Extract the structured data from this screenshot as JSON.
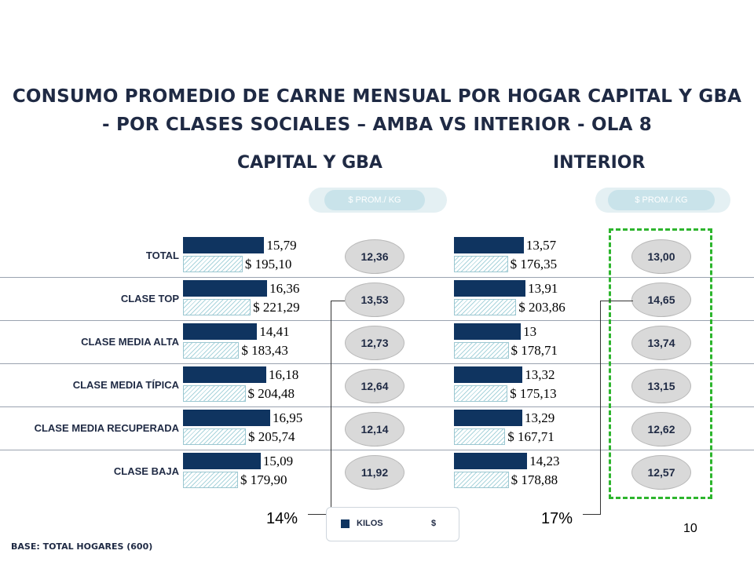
{
  "title_line1": "CONSUMO PROMEDIO DE CARNE MENSUAL POR HOGAR CAPITAL Y GBA",
  "title_line2": "- POR CLASES SOCIALES – AMBA VS INTERIOR - OLA 8",
  "pill_label": "$ PROM./ KG",
  "legend": {
    "kilos": "KILOS",
    "pesos": "$"
  },
  "colors": {
    "kilos": "#0f3460",
    "pesos_hatch": "#a9d4dc",
    "highlight_box": "#2db52d"
  },
  "page_number": "10",
  "base": "BASE: TOTAL HOGARES (600)",
  "chart_data": [
    {
      "type": "bar",
      "title": "CAPITAL Y GBA",
      "categories": [
        "TOTAL",
        "CLASE TOP",
        "CLASE MEDIA ALTA",
        "CLASE MEDIA TÍPICA",
        "CLASE MEDIA RECUPERADA",
        "CLASE BAJA"
      ],
      "series": [
        {
          "name": "KILOS",
          "values": [
            15.79,
            16.36,
            14.41,
            16.18,
            16.95,
            15.09
          ],
          "labels": [
            "15,79",
            "16,36",
            "14,41",
            "16,18",
            "16,95",
            "15,09"
          ]
        },
        {
          "name": "$",
          "values": [
            195.1,
            221.29,
            183.43,
            204.48,
            205.74,
            179.9
          ],
          "labels": [
            "$ 195,10",
            "$ 221,29",
            "$ 183,43",
            "$ 204,48",
            "$ 205,74",
            "$ 179,90"
          ]
        }
      ],
      "price_per_kg": [
        "12,36",
        "13,53",
        "12,73",
        "12,64",
        "12,14",
        "11,92"
      ],
      "bracket_label": "14%"
    },
    {
      "type": "bar",
      "title": "INTERIOR",
      "categories": [
        "TOTAL",
        "CLASE TOP",
        "CLASE MEDIA ALTA",
        "CLASE MEDIA TÍPICA",
        "CLASE MEDIA RECUPERADA",
        "CLASE BAJA"
      ],
      "series": [
        {
          "name": "KILOS",
          "values": [
            13.57,
            13.91,
            13.0,
            13.32,
            13.29,
            14.23
          ],
          "labels": [
            "13,57",
            "13,91",
            "13",
            "13,32",
            "13,29",
            "14,23"
          ]
        },
        {
          "name": "$",
          "values": [
            176.35,
            203.86,
            178.71,
            175.13,
            167.71,
            178.88
          ],
          "labels": [
            "$ 176,35",
            "$ 203,86",
            "$ 178,71",
            "$ 175,13",
            "$ 167,71",
            "$ 178,88"
          ]
        }
      ],
      "price_per_kg": [
        "13,00",
        "14,65",
        "13,74",
        "13,15",
        "12,62",
        "12,57"
      ],
      "bracket_label": "17%"
    }
  ]
}
